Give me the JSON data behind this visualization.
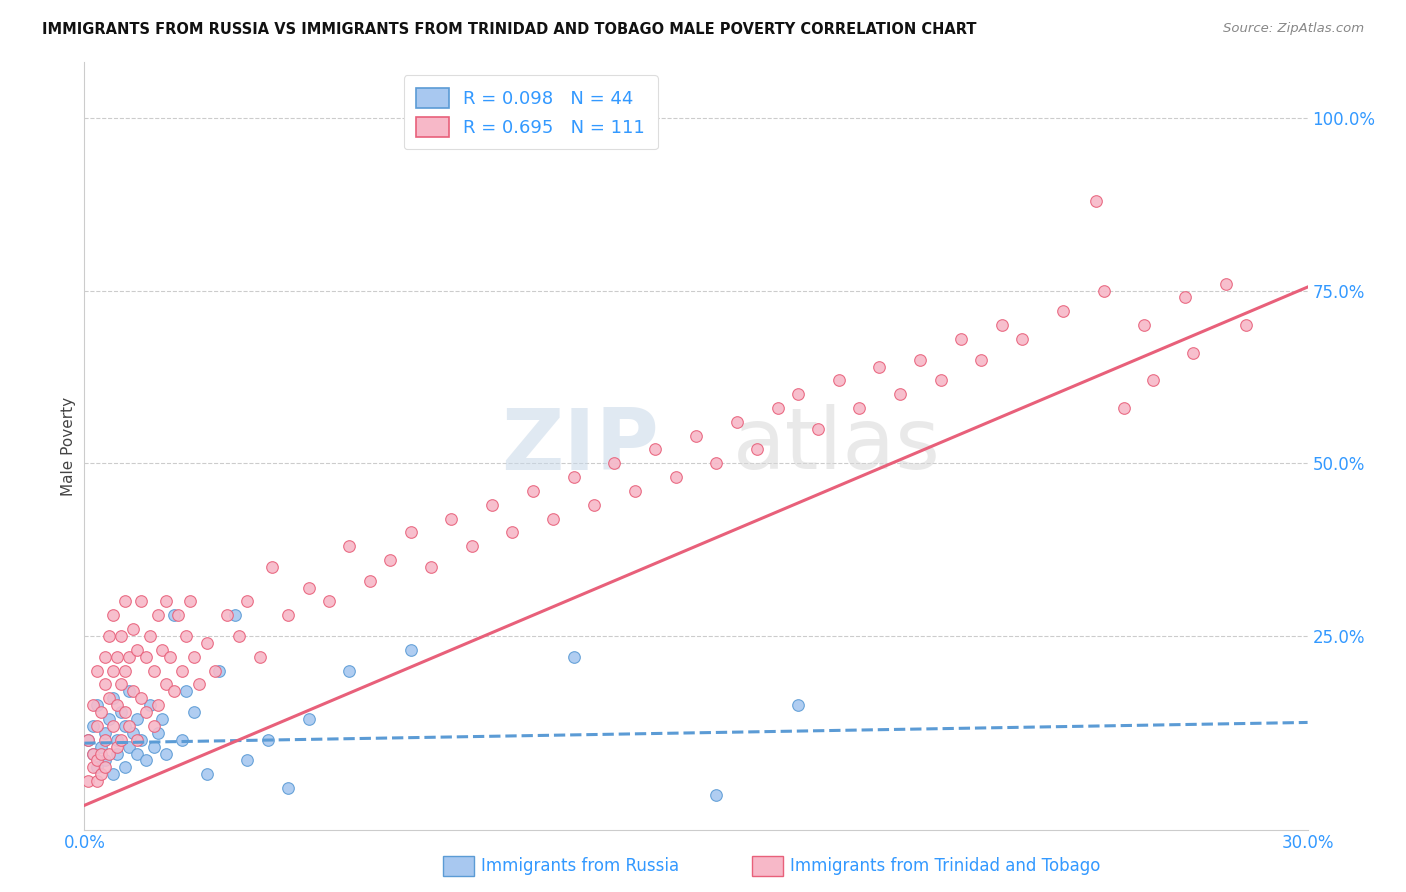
{
  "title": "IMMIGRANTS FROM RUSSIA VS IMMIGRANTS FROM TRINIDAD AND TOBAGO MALE POVERTY CORRELATION CHART",
  "source": "Source: ZipAtlas.com",
  "ylabel": "Male Poverty",
  "ytick_labels": [
    "100.0%",
    "75.0%",
    "50.0%",
    "25.0%"
  ],
  "ytick_values": [
    1.0,
    0.75,
    0.5,
    0.25
  ],
  "xlim": [
    0.0,
    0.3
  ],
  "ylim": [
    -0.03,
    1.08
  ],
  "legend_r1": "R = 0.098",
  "legend_n1": "N = 44",
  "legend_r2": "R = 0.695",
  "legend_n2": "N = 111",
  "color_russia_fill": "#a8c8f0",
  "color_russia_edge": "#5b9bd5",
  "color_tt_fill": "#f7b8c8",
  "color_tt_edge": "#e8607a",
  "color_russia_line": "#5b9bd5",
  "color_tt_line": "#e8607a",
  "watermark_zip": "ZIP",
  "watermark_atlas": "atlas",
  "grid_color": "#cccccc",
  "background_color": "#ffffff",
  "russia_line_x": [
    0.0,
    0.3
  ],
  "russia_line_y": [
    0.095,
    0.125
  ],
  "tt_line_x": [
    0.0,
    0.3
  ],
  "tt_line_y": [
    0.005,
    0.755
  ],
  "russia_scatter_x": [
    0.001,
    0.002,
    0.002,
    0.003,
    0.003,
    0.004,
    0.005,
    0.005,
    0.006,
    0.007,
    0.007,
    0.008,
    0.008,
    0.009,
    0.01,
    0.01,
    0.011,
    0.011,
    0.012,
    0.013,
    0.013,
    0.014,
    0.015,
    0.016,
    0.017,
    0.018,
    0.019,
    0.02,
    0.022,
    0.024,
    0.025,
    0.027,
    0.03,
    0.033,
    0.037,
    0.04,
    0.045,
    0.05,
    0.055,
    0.065,
    0.08,
    0.12,
    0.155,
    0.175
  ],
  "russia_scatter_y": [
    0.1,
    0.08,
    0.12,
    0.06,
    0.15,
    0.09,
    0.11,
    0.07,
    0.13,
    0.05,
    0.16,
    0.1,
    0.08,
    0.14,
    0.12,
    0.06,
    0.09,
    0.17,
    0.11,
    0.08,
    0.13,
    0.1,
    0.07,
    0.15,
    0.09,
    0.11,
    0.13,
    0.08,
    0.28,
    0.1,
    0.17,
    0.14,
    0.05,
    0.2,
    0.28,
    0.07,
    0.1,
    0.03,
    0.13,
    0.2,
    0.23,
    0.22,
    0.02,
    0.15
  ],
  "tt_scatter_x": [
    0.001,
    0.001,
    0.002,
    0.002,
    0.002,
    0.003,
    0.003,
    0.003,
    0.003,
    0.004,
    0.004,
    0.004,
    0.005,
    0.005,
    0.005,
    0.005,
    0.006,
    0.006,
    0.006,
    0.007,
    0.007,
    0.007,
    0.008,
    0.008,
    0.008,
    0.009,
    0.009,
    0.009,
    0.01,
    0.01,
    0.01,
    0.011,
    0.011,
    0.012,
    0.012,
    0.013,
    0.013,
    0.014,
    0.014,
    0.015,
    0.015,
    0.016,
    0.017,
    0.017,
    0.018,
    0.018,
    0.019,
    0.02,
    0.02,
    0.021,
    0.022,
    0.023,
    0.024,
    0.025,
    0.026,
    0.027,
    0.028,
    0.03,
    0.032,
    0.035,
    0.038,
    0.04,
    0.043,
    0.046,
    0.05,
    0.055,
    0.06,
    0.065,
    0.07,
    0.075,
    0.08,
    0.085,
    0.09,
    0.095,
    0.1,
    0.105,
    0.11,
    0.115,
    0.12,
    0.125,
    0.13,
    0.135,
    0.14,
    0.145,
    0.15,
    0.155,
    0.16,
    0.165,
    0.17,
    0.175,
    0.18,
    0.185,
    0.19,
    0.195,
    0.2,
    0.205,
    0.21,
    0.215,
    0.22,
    0.225,
    0.23,
    0.24,
    0.25,
    0.26,
    0.27,
    0.28,
    0.248,
    0.255,
    0.262,
    0.272,
    0.285
  ],
  "tt_scatter_y": [
    0.04,
    0.1,
    0.06,
    0.15,
    0.08,
    0.04,
    0.12,
    0.07,
    0.2,
    0.05,
    0.14,
    0.08,
    0.18,
    0.06,
    0.22,
    0.1,
    0.16,
    0.08,
    0.25,
    0.12,
    0.2,
    0.28,
    0.09,
    0.22,
    0.15,
    0.18,
    0.1,
    0.25,
    0.14,
    0.2,
    0.3,
    0.12,
    0.22,
    0.17,
    0.26,
    0.1,
    0.23,
    0.16,
    0.3,
    0.14,
    0.22,
    0.25,
    0.12,
    0.2,
    0.28,
    0.15,
    0.23,
    0.18,
    0.3,
    0.22,
    0.17,
    0.28,
    0.2,
    0.25,
    0.3,
    0.22,
    0.18,
    0.24,
    0.2,
    0.28,
    0.25,
    0.3,
    0.22,
    0.35,
    0.28,
    0.32,
    0.3,
    0.38,
    0.33,
    0.36,
    0.4,
    0.35,
    0.42,
    0.38,
    0.44,
    0.4,
    0.46,
    0.42,
    0.48,
    0.44,
    0.5,
    0.46,
    0.52,
    0.48,
    0.54,
    0.5,
    0.56,
    0.52,
    0.58,
    0.6,
    0.55,
    0.62,
    0.58,
    0.64,
    0.6,
    0.65,
    0.62,
    0.68,
    0.65,
    0.7,
    0.68,
    0.72,
    0.75,
    0.7,
    0.74,
    0.76,
    0.88,
    0.58,
    0.62,
    0.66,
    0.7
  ]
}
